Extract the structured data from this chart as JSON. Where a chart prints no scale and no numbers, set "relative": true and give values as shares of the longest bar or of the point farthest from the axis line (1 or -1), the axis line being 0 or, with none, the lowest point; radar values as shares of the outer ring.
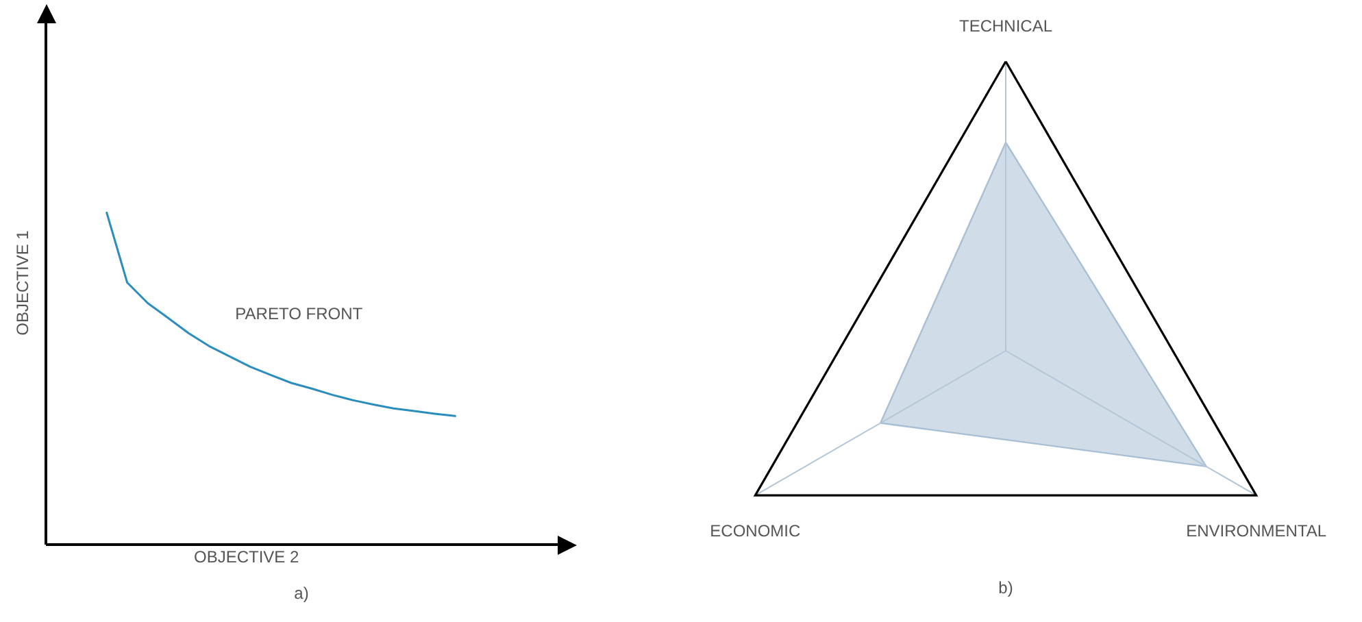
{
  "chart_data": [
    {
      "type": "line",
      "title": "a)",
      "xlabel": "OBJECTIVE 2",
      "ylabel": "OBJECTIVE 1",
      "relative": true,
      "categories": [
        null,
        null,
        null,
        null,
        null,
        null,
        null,
        null,
        null,
        null,
        null,
        null,
        null,
        null,
        null,
        null,
        null,
        null,
        null,
        null,
        null,
        null,
        null,
        null,
        null,
        null
      ],
      "annotations": [
        "PARETO FRONT"
      ],
      "series": [
        {
          "color": "#2b8cbe",
          "values": [
            null,
            null,
            null,
            1,
            0.789,
            0.727,
            0.682,
            0.636,
            0.597,
            0.566,
            0.535,
            0.51,
            0.486,
            0.469,
            0.45,
            0.434,
            0.421,
            0.409,
            0.401,
            0.393,
            0.386,
            null,
            null,
            null,
            null,
            null
          ]
        }
      ]
    },
    {
      "type": "radar",
      "title": "b)",
      "relative": true,
      "categories": [
        "TECHNICAL",
        "ENVIRONMENTAL",
        "ECONOMIC"
      ],
      "series": [
        {
          "color": "#a9bfd4",
          "values": [
            0.72,
            0.8,
            0.5
          ]
        }
      ]
    }
  ]
}
